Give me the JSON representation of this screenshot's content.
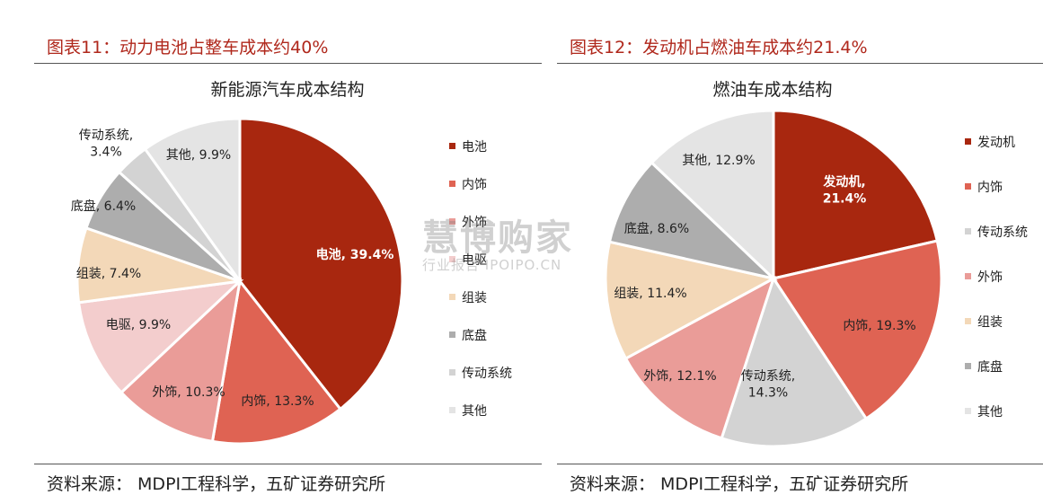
{
  "left": {
    "figure_title": "图表11：动力电池占整车成本约40%",
    "source": "资料来源：  MDPI工程科学，五矿证券研究所"
  },
  "right": {
    "figure_title": "图表12：发动机占燃油车成本约21.4%",
    "source": "资料来源：  MDPI工程科学，五矿证券研究所"
  },
  "watermark": {
    "main": "慧博购家",
    "sub": "行业报告 IPOIPO.CN"
  },
  "chart_data": [
    {
      "type": "pie",
      "title": "新能源汽车成本结构",
      "categories": [
        "电池",
        "内饰",
        "外饰",
        "电驱",
        "组装",
        "底盘",
        "传动系统",
        "其他"
      ],
      "values": [
        39.4,
        13.3,
        10.3,
        9.9,
        7.4,
        6.4,
        3.4,
        9.9
      ],
      "labels": [
        "电池, 39.4%",
        "内饰, 13.3%",
        "外饰, 10.3%",
        "电驱, 9.9%",
        "组装, 7.4%",
        "底盘, 6.4%",
        "传动系统, 3.4%",
        "其他, 9.9%"
      ],
      "colors": [
        "#a8270f",
        "#df6353",
        "#ea9c98",
        "#f3cdcd",
        "#f3d8b8",
        "#adadad",
        "#d3d3d3",
        "#e4e4e4"
      ],
      "legend": [
        "电池",
        "内饰",
        "外饰",
        "电驱",
        "组装",
        "底盘",
        "传动系统",
        "其他"
      ],
      "legend_position": "right"
    },
    {
      "type": "pie",
      "title": "燃油车成本结构",
      "categories": [
        "发动机",
        "内饰",
        "传动系统",
        "外饰",
        "组装",
        "底盘",
        "其他"
      ],
      "values": [
        21.4,
        19.3,
        14.3,
        12.1,
        11.4,
        8.6,
        12.9
      ],
      "labels": [
        "发动机, 21.4%",
        "内饰, 19.3%",
        "传动系统, 14.3%",
        "外饰, 12.1%",
        "组装, 11.4%",
        "底盘, 8.6%",
        "其他, 12.9%"
      ],
      "colors": [
        "#a8270f",
        "#df6353",
        "#d3d3d3",
        "#ea9c98",
        "#f3d8b8",
        "#adadad",
        "#e4e4e4"
      ],
      "legend": [
        "发动机",
        "内饰",
        "传动系统",
        "外饰",
        "组装",
        "底盘",
        "其他"
      ],
      "legend_position": "right"
    }
  ]
}
